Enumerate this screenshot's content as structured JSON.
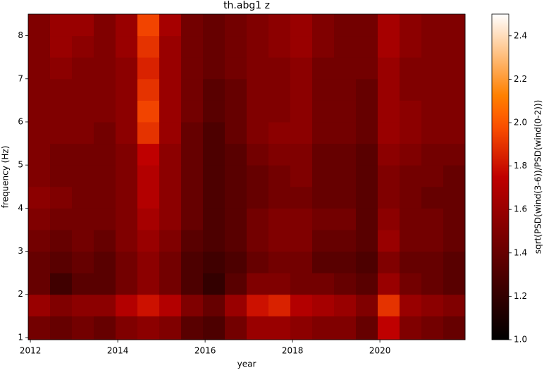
{
  "chart_data": {
    "type": "heatmap",
    "title": "th.abg1 z",
    "x_label": "year",
    "y_label": "frequency (Hz)",
    "colorbar_label": "sqrt(PSD(wind(3-6))/PSD(wind(0-2)))",
    "colormap": "gist_heat",
    "x_edges": [
      2011.95,
      2012.45,
      2012.95,
      2013.45,
      2013.95,
      2014.45,
      2014.95,
      2015.45,
      2015.95,
      2016.45,
      2016.95,
      2017.45,
      2017.95,
      2018.45,
      2018.95,
      2019.45,
      2019.95,
      2020.45,
      2020.95,
      2021.45,
      2021.95
    ],
    "y_edges": [
      0.95,
      1.5,
      2.0,
      2.5,
      3.0,
      3.5,
      4.0,
      4.5,
      5.0,
      5.5,
      6.0,
      6.5,
      7.0,
      7.5,
      8.0,
      8.5
    ],
    "z": [
      [
        1.45,
        1.4,
        1.45,
        1.4,
        1.5,
        1.55,
        1.5,
        1.35,
        1.3,
        1.45,
        1.6,
        1.6,
        1.55,
        1.5,
        1.5,
        1.4,
        1.75,
        1.5,
        1.45,
        1.4
      ],
      [
        1.6,
        1.5,
        1.55,
        1.55,
        1.7,
        1.8,
        1.7,
        1.5,
        1.4,
        1.6,
        1.8,
        1.85,
        1.7,
        1.65,
        1.6,
        1.5,
        1.9,
        1.6,
        1.55,
        1.5
      ],
      [
        1.4,
        1.25,
        1.35,
        1.35,
        1.45,
        1.55,
        1.45,
        1.3,
        1.2,
        1.35,
        1.5,
        1.5,
        1.45,
        1.45,
        1.4,
        1.35,
        1.6,
        1.45,
        1.4,
        1.35
      ],
      [
        1.4,
        1.35,
        1.4,
        1.35,
        1.45,
        1.55,
        1.45,
        1.3,
        1.25,
        1.3,
        1.4,
        1.45,
        1.45,
        1.35,
        1.35,
        1.3,
        1.5,
        1.4,
        1.4,
        1.35
      ],
      [
        1.45,
        1.4,
        1.45,
        1.4,
        1.5,
        1.6,
        1.5,
        1.35,
        1.3,
        1.35,
        1.45,
        1.5,
        1.5,
        1.4,
        1.4,
        1.35,
        1.6,
        1.45,
        1.45,
        1.4
      ],
      [
        1.5,
        1.45,
        1.45,
        1.45,
        1.5,
        1.65,
        1.55,
        1.4,
        1.3,
        1.35,
        1.45,
        1.5,
        1.5,
        1.45,
        1.45,
        1.35,
        1.55,
        1.45,
        1.45,
        1.4
      ],
      [
        1.55,
        1.5,
        1.45,
        1.45,
        1.5,
        1.7,
        1.55,
        1.4,
        1.3,
        1.35,
        1.4,
        1.45,
        1.45,
        1.4,
        1.4,
        1.35,
        1.5,
        1.45,
        1.4,
        1.4
      ],
      [
        1.5,
        1.45,
        1.45,
        1.45,
        1.5,
        1.7,
        1.55,
        1.4,
        1.3,
        1.35,
        1.4,
        1.45,
        1.5,
        1.4,
        1.4,
        1.35,
        1.5,
        1.45,
        1.45,
        1.4
      ],
      [
        1.5,
        1.45,
        1.45,
        1.45,
        1.5,
        1.75,
        1.55,
        1.4,
        1.3,
        1.35,
        1.45,
        1.5,
        1.5,
        1.4,
        1.4,
        1.35,
        1.55,
        1.5,
        1.45,
        1.45
      ],
      [
        1.5,
        1.5,
        1.5,
        1.45,
        1.55,
        1.9,
        1.6,
        1.4,
        1.3,
        1.4,
        1.5,
        1.55,
        1.55,
        1.45,
        1.45,
        1.4,
        1.6,
        1.55,
        1.5,
        1.5
      ],
      [
        1.5,
        1.5,
        1.5,
        1.5,
        1.55,
        1.95,
        1.6,
        1.45,
        1.35,
        1.4,
        1.5,
        1.5,
        1.55,
        1.45,
        1.45,
        1.4,
        1.6,
        1.55,
        1.5,
        1.5
      ],
      [
        1.5,
        1.5,
        1.5,
        1.5,
        1.55,
        1.9,
        1.6,
        1.45,
        1.35,
        1.4,
        1.5,
        1.5,
        1.55,
        1.45,
        1.45,
        1.4,
        1.6,
        1.5,
        1.5,
        1.5
      ],
      [
        1.5,
        1.55,
        1.5,
        1.5,
        1.55,
        1.85,
        1.6,
        1.45,
        1.4,
        1.45,
        1.5,
        1.5,
        1.55,
        1.45,
        1.45,
        1.45,
        1.6,
        1.5,
        1.5,
        1.5
      ],
      [
        1.5,
        1.6,
        1.55,
        1.5,
        1.6,
        1.9,
        1.6,
        1.45,
        1.4,
        1.45,
        1.5,
        1.55,
        1.6,
        1.5,
        1.45,
        1.45,
        1.65,
        1.55,
        1.5,
        1.5
      ],
      [
        1.5,
        1.6,
        1.6,
        1.5,
        1.6,
        1.95,
        1.65,
        1.45,
        1.4,
        1.45,
        1.5,
        1.55,
        1.6,
        1.5,
        1.45,
        1.45,
        1.65,
        1.55,
        1.5,
        1.5
      ]
    ],
    "xlim": [
      2011.95,
      2021.95
    ],
    "ylim": [
      0.95,
      8.5
    ],
    "xticks": [
      2012,
      2014,
      2016,
      2018,
      2020
    ],
    "yticks": [
      1,
      2,
      3,
      4,
      5,
      6,
      7,
      8
    ],
    "clim": [
      1.0,
      2.5
    ],
    "cticks": [
      {
        "value": 1,
        "label": "1.0"
      },
      1.2,
      1.4,
      1.6,
      1.8,
      {
        "value": 2,
        "label": "2.0"
      },
      2.2,
      2.4
    ]
  }
}
